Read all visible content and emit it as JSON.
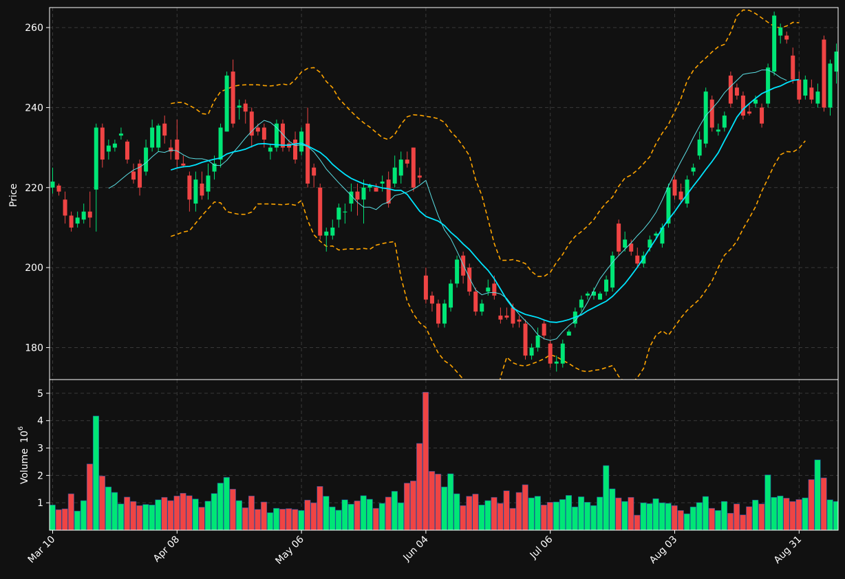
{
  "chart_data": {
    "type": "candlestick",
    "grid": true,
    "colors": {
      "background": "#111111",
      "up": "#00e676",
      "down": "#ef4444",
      "ma_slow": "#00e5ff",
      "ma_fast": "#5ce1e6",
      "bands": "#ffa500",
      "grid": "#3a3a3a",
      "axis": "#ffffff"
    },
    "price_panel": {
      "ylabel": "Price",
      "ylim": [
        172,
        265
      ],
      "yticks": [
        180,
        200,
        220,
        240,
        260
      ]
    },
    "volume_panel": {
      "ylabel": "Volume",
      "ylabel_exponent": "6",
      "unit_multiplier": "10",
      "ylim": [
        0,
        5.5
      ],
      "yticks": [
        1,
        2,
        3,
        4,
        5
      ]
    },
    "x_ticks": [
      {
        "index": 0,
        "label": "Mar 10"
      },
      {
        "index": 20,
        "label": "Apr 08"
      },
      {
        "index": 40,
        "label": "May 06"
      },
      {
        "index": 60,
        "label": "Jun 04"
      },
      {
        "index": 80,
        "label": "Jul 06"
      },
      {
        "index": 100,
        "label": "Aug 03"
      },
      {
        "index": 120,
        "label": "Aug 31"
      }
    ],
    "candles": [
      [
        220.0,
        221.5,
        225,
        218.5
      ],
      [
        220.5,
        219,
        221,
        218
      ],
      [
        217,
        213,
        219,
        211
      ],
      [
        213,
        210,
        214,
        209
      ],
      [
        211,
        212.5,
        214,
        210
      ],
      [
        212,
        214,
        216,
        211
      ],
      [
        214,
        212.5,
        219,
        210
      ],
      [
        219.5,
        235,
        236,
        209
      ],
      [
        235,
        227,
        236,
        225
      ],
      [
        229,
        230.5,
        232,
        227
      ],
      [
        230,
        231,
        232,
        229
      ],
      [
        233,
        233.5,
        235,
        232
      ],
      [
        231.5,
        227,
        232,
        226
      ],
      [
        224,
        222,
        226,
        221
      ],
      [
        226,
        220,
        227,
        218
      ],
      [
        224,
        230,
        232,
        223
      ],
      [
        230,
        235,
        237,
        229
      ],
      [
        230,
        235.5,
        236,
        229
      ],
      [
        236,
        233,
        238,
        231
      ],
      [
        230,
        229,
        232,
        227
      ],
      [
        232,
        227,
        237,
        225
      ],
      [
        226,
        225.5,
        228,
        225
      ],
      [
        223,
        217,
        224,
        214
      ],
      [
        216,
        222,
        224,
        214
      ],
      [
        221,
        218,
        224,
        217
      ],
      [
        219,
        223,
        226,
        217
      ],
      [
        224,
        226,
        228,
        222
      ],
      [
        227,
        235,
        236,
        225
      ],
      [
        234,
        248,
        249,
        234
      ],
      [
        249,
        236,
        252,
        235
      ],
      [
        240,
        240.5,
        242,
        237
      ],
      [
        241,
        239,
        242,
        236
      ],
      [
        239,
        233,
        240,
        230
      ],
      [
        235,
        234,
        236,
        233
      ],
      [
        235,
        232,
        236,
        230
      ],
      [
        229,
        230,
        231,
        227
      ],
      [
        230,
        236,
        237,
        229
      ],
      [
        236,
        230,
        237,
        229
      ],
      [
        231,
        230,
        232,
        229
      ],
      [
        232,
        227,
        234,
        226
      ],
      [
        229,
        234,
        235,
        228
      ],
      [
        236,
        221,
        240,
        220
      ],
      [
        225,
        223,
        226,
        220
      ],
      [
        220,
        208,
        221,
        207
      ],
      [
        208,
        209,
        210,
        204
      ],
      [
        208,
        210,
        212,
        207
      ],
      [
        212,
        215,
        216,
        210
      ],
      [
        214,
        214,
        216,
        211
      ],
      [
        216,
        219,
        221,
        214
      ],
      [
        219,
        217,
        221,
        213
      ],
      [
        217,
        220,
        222,
        211
      ],
      [
        220,
        220.5,
        221,
        219
      ],
      [
        220,
        219,
        221,
        219
      ],
      [
        221,
        221.5,
        223,
        219
      ],
      [
        222,
        216,
        224,
        215
      ],
      [
        221,
        225,
        228,
        220
      ],
      [
        223,
        227,
        229,
        221
      ],
      [
        227,
        226,
        229,
        225
      ],
      [
        230,
        220,
        230,
        219
      ],
      [
        223,
        222.5,
        225,
        221
      ],
      [
        198,
        192,
        200,
        191
      ],
      [
        193,
        191,
        194,
        189
      ],
      [
        191,
        186,
        192,
        185
      ],
      [
        186,
        191,
        192,
        185
      ],
      [
        190,
        196,
        197,
        189
      ],
      [
        196,
        202,
        203,
        195
      ],
      [
        203,
        198,
        204,
        196
      ],
      [
        200,
        194,
        201,
        193
      ],
      [
        194,
        189,
        195,
        188
      ],
      [
        189,
        191,
        192,
        188
      ],
      [
        194,
        195,
        197,
        193
      ],
      [
        196,
        193,
        198,
        192
      ],
      [
        188,
        187,
        190,
        186
      ],
      [
        188,
        187.5,
        190,
        187
      ],
      [
        190,
        186,
        191,
        185
      ],
      [
        187,
        186.5,
        188,
        185
      ],
      [
        186,
        178,
        187,
        177
      ],
      [
        178,
        180,
        181,
        177
      ],
      [
        180,
        183,
        185,
        179
      ],
      [
        186,
        183,
        187,
        182
      ],
      [
        181,
        176,
        182,
        175
      ],
      [
        176,
        176.5,
        178,
        174
      ],
      [
        176,
        181,
        182,
        175
      ],
      [
        183,
        184,
        184.5,
        183
      ],
      [
        186,
        189,
        190,
        185
      ],
      [
        190,
        192,
        193,
        189
      ],
      [
        193,
        193.5,
        194,
        192
      ],
      [
        193,
        194,
        195,
        192
      ],
      [
        192,
        193.5,
        194,
        192
      ],
      [
        194,
        197,
        198,
        193
      ],
      [
        195,
        203,
        204,
        194
      ],
      [
        211,
        204,
        212,
        203
      ],
      [
        205,
        207,
        209,
        204
      ],
      [
        206,
        204,
        207,
        203
      ],
      [
        203,
        201,
        205,
        200
      ],
      [
        201,
        203,
        204,
        200
      ],
      [
        205,
        207,
        208,
        204
      ],
      [
        208,
        208.5,
        209,
        207
      ],
      [
        206,
        210,
        211,
        205
      ],
      [
        211,
        220,
        221,
        210
      ],
      [
        222,
        218,
        223,
        217
      ],
      [
        219,
        217,
        221,
        216
      ],
      [
        216,
        222,
        223,
        215
      ],
      [
        224,
        225,
        226,
        223
      ],
      [
        228,
        232,
        234,
        227
      ],
      [
        231,
        244,
        245,
        230
      ],
      [
        242,
        235,
        243,
        234
      ],
      [
        234,
        234.5,
        236,
        233
      ],
      [
        235,
        238,
        239,
        234
      ],
      [
        248,
        241,
        249,
        240
      ],
      [
        245,
        243,
        246,
        242
      ],
      [
        243,
        238,
        244,
        237
      ],
      [
        239,
        238.5,
        241,
        238
      ],
      [
        241,
        242,
        243,
        240
      ],
      [
        240,
        236,
        241,
        235
      ],
      [
        241,
        250,
        251,
        240
      ],
      [
        249,
        263,
        264,
        248
      ],
      [
        258,
        260,
        261,
        256
      ],
      [
        258,
        257,
        259,
        256
      ],
      [
        253,
        247,
        255,
        246
      ],
      [
        247,
        242,
        249,
        241
      ],
      [
        243,
        247,
        248,
        242
      ],
      [
        245,
        242,
        247,
        241
      ],
      [
        241,
        244,
        246,
        240
      ],
      [
        257,
        240,
        258,
        239
      ],
      [
        240,
        251,
        252,
        238
      ],
      [
        249,
        254,
        256,
        246
      ],
      [
        254,
        250,
        256,
        249
      ]
    ],
    "volume": [
      0.92,
      0.75,
      0.78,
      1.33,
      0.7,
      1.08,
      2.42,
      4.17,
      1.98,
      1.58,
      1.38,
      0.96,
      1.21,
      1.05,
      0.9,
      0.94,
      0.92,
      1.11,
      1.2,
      1.08,
      1.25,
      1.35,
      1.26,
      1.14,
      0.84,
      1.06,
      1.34,
      1.72,
      1.93,
      1.5,
      1.08,
      0.82,
      1.25,
      0.76,
      1.03,
      0.64,
      0.8,
      0.77,
      0.79,
      0.76,
      0.72,
      1.1,
      1.0,
      1.6,
      1.24,
      0.85,
      0.73,
      1.11,
      0.95,
      1.07,
      1.26,
      1.13,
      0.8,
      0.98,
      1.21,
      1.42,
      1.0,
      1.72,
      1.8,
      3.17,
      5.04,
      2.15,
      2.05,
      1.58,
      2.06,
      1.33,
      0.9,
      1.24,
      1.32,
      0.92,
      1.08,
      1.2,
      0.98,
      1.44,
      0.8,
      1.38,
      1.66,
      1.18,
      1.24,
      0.92,
      1.02,
      1.03,
      1.12,
      1.27,
      0.85,
      1.22,
      1.02,
      0.9,
      1.21,
      2.36,
      1.51,
      1.18,
      1.05,
      1.2,
      0.55,
      1.0,
      0.97,
      1.15,
      1.0,
      0.98,
      0.9,
      0.72,
      0.6,
      0.85,
      1.01,
      1.23,
      0.8,
      0.72,
      1.05,
      0.62,
      0.96,
      0.56,
      0.86,
      1.1,
      0.96,
      2.02,
      1.2,
      1.25,
      1.17,
      1.05,
      1.12,
      1.18,
      1.85,
      2.57,
      1.91,
      1.11,
      1.05
    ],
    "ma_slow_start": 19,
    "ma_slow": [
      224.4,
      224.9,
      225.2,
      225.3,
      225.7,
      226.3,
      226.7,
      227.1,
      227.4,
      228.4,
      228.9,
      229.2,
      229.6,
      230.3,
      230.9,
      231.0,
      230.8,
      230.7,
      230.6,
      230.6,
      230.9,
      231.1,
      230.4,
      229.6,
      228.8,
      227.5,
      225.8,
      224.5,
      223.3,
      222.3,
      221.6,
      220.9,
      220.6,
      220.3,
      219.9,
      219.7,
      219.3,
      219.3,
      218.3,
      216.2,
      214.1,
      212.8,
      212.2,
      211.6,
      210.5,
      208.8,
      207.5,
      205.9,
      204.5,
      202.7,
      200.9,
      199.3,
      197.2,
      194.6,
      192.0,
      189.9,
      189.0,
      188.3,
      187.9,
      187.5,
      186.9,
      186.4,
      186.3,
      186.6,
      187.0,
      187.6,
      188.2,
      189.2,
      190.0,
      190.8,
      191.6,
      192.8,
      194.4,
      196.0,
      198.0,
      200.1,
      202.4,
      204.8,
      207.2,
      209.8,
      212.0,
      214.0,
      216.2,
      218.3,
      220.4,
      222.4,
      224.5,
      226.5,
      228.7,
      231.7,
      234.6,
      237.6,
      239.6,
      241.0,
      242.3,
      243.5,
      244.2,
      244.9,
      245.4,
      246.2,
      246.8,
      247.0
    ],
    "ma_fast_start": 9,
    "ma_fast": [
      219.8,
      220.7,
      222.0,
      223.3,
      224.4,
      225.1,
      226.2,
      227.7,
      229.0,
      228.8,
      229.4,
      229.2,
      228.2,
      227.4,
      227.2,
      227.2,
      226.8,
      225.6,
      225.5,
      226.8,
      228.7,
      230.5,
      232.4,
      234.1,
      235.6,
      236.8,
      236.3,
      235.0,
      233.3,
      231.6,
      230.5,
      230.7,
      230.3,
      228.9,
      226.9,
      224.6,
      222.9,
      221.2,
      219.6,
      218.0,
      216.3,
      215.1,
      215.1,
      214.5,
      215.8,
      216.4,
      218.0,
      218.4,
      218.9,
      219.6,
      220.6,
      221.8,
      217.2,
      212.9,
      209.4,
      207.2,
      204.1,
      200.7,
      197.4,
      194.4,
      193.2,
      193.7,
      193.8,
      193.4,
      192.3,
      190.2,
      188.3,
      186.7,
      185.2,
      183.2,
      182.2,
      181.8,
      182.2,
      184.0,
      185.5,
      186.7,
      188.7,
      191.3,
      194.3,
      197.2,
      199.3,
      201.3,
      203.0,
      204.6,
      206.2,
      208.0,
      209.6,
      211.5,
      213.8,
      216.9,
      220.4,
      223.5,
      226.5,
      229.4,
      232.5,
      235.4,
      238.0,
      239.7,
      241.5,
      243.7,
      245.3,
      246.8,
      248.3,
      248.6,
      248.8,
      249.4,
      249.4,
      248.6,
      247.5,
      246.8
    ],
    "bb_upper": [
      241.0,
      241.3,
      241.3,
      240.5,
      239.7,
      238.5,
      238.3,
      241.7,
      244.0,
      244.6,
      245.3,
      245.6,
      245.7,
      245.7,
      245.7,
      245.5,
      245.4,
      245.6,
      245.9,
      245.6,
      247.0,
      248.9,
      249.8,
      250.0,
      248.8,
      246.5,
      245.0,
      242.3,
      240.6,
      239.0,
      237.5,
      236.2,
      235.1,
      233.8,
      232.5,
      232.0,
      233.3,
      235.8,
      237.7,
      238.2,
      238.1,
      237.8,
      237.6,
      237.2,
      236.3,
      234.0,
      232.4,
      230.3,
      228.0,
      222.0,
      218.0,
      212.0,
      206.0,
      201.8,
      201.8,
      202.0,
      201.6,
      201.0,
      199.0,
      197.8,
      197.8,
      198.8,
      201.3,
      203.3,
      205.9,
      207.8,
      209.0,
      210.4,
      212.0,
      214.3,
      216.2,
      217.6,
      220.3,
      222.4,
      223.1,
      224.4,
      226.0,
      227.7,
      231.0,
      233.6,
      235.8,
      239.0,
      242.2,
      246.7,
      249.3,
      251.0,
      252.4,
      253.9,
      255.2,
      255.8,
      258.8,
      262.9,
      264.4,
      264.3,
      263.5,
      262.4,
      261.3,
      260.3,
      259.9,
      260.4,
      261.3,
      261.2
    ],
    "bb_lower": [
      207.8,
      208.3,
      208.9,
      209.2,
      211.1,
      213.0,
      214.7,
      216.4,
      216.2,
      214.0,
      213.6,
      213.3,
      213.3,
      213.9,
      215.9,
      215.9,
      215.9,
      215.8,
      215.7,
      215.9,
      215.6,
      216.8,
      211.8,
      208.2,
      206.6,
      205.3,
      205.4,
      204.4,
      204.6,
      204.7,
      204.6,
      204.8,
      204.6,
      205.6,
      206.0,
      206.3,
      206.5,
      197.6,
      191.6,
      188.4,
      186.2,
      185.0,
      181.7,
      178.6,
      176.7,
      175.6,
      173.9,
      172.1,
      171.5,
      170.2,
      168.5,
      166.5,
      163.0,
      172.6,
      177.6,
      176.2,
      175.6,
      175.4,
      175.9,
      176.5,
      177.2,
      178.2,
      177.7,
      176.8,
      176.0,
      175.0,
      174.2,
      174.0,
      174.3,
      174.5,
      175.0,
      175.5,
      172.8,
      171.3,
      171.0,
      172.5,
      174.8,
      180.2,
      183.1,
      184.2,
      183.1,
      185.2,
      187.4,
      189.3,
      190.7,
      192.1,
      194.3,
      196.6,
      200.0,
      203.1,
      204.6,
      206.6,
      209.7,
      212.4,
      215.2,
      219.1,
      222.3,
      225.6,
      228.2,
      229.0,
      228.9,
      229.8,
      231.7
    ]
  }
}
